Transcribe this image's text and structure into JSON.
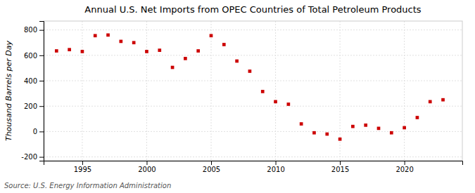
{
  "chart_data": {
    "type": "scatter",
    "title": "Annual U.S. Net Imports from OPEC Countries of Total Petroleum Products",
    "ylabel": "Thousand Barrels per Day",
    "source": "Source: U.S. Energy Information Administration",
    "x": [
      1993,
      1994,
      1995,
      1996,
      1997,
      1998,
      1999,
      2000,
      2001,
      2002,
      2003,
      2004,
      2005,
      2006,
      2007,
      2008,
      2009,
      2010,
      2011,
      2012,
      2013,
      2014,
      2015,
      2016,
      2017,
      2018,
      2019,
      2020,
      2021,
      2022,
      2023
    ],
    "values": [
      635,
      645,
      630,
      755,
      760,
      710,
      700,
      630,
      640,
      505,
      575,
      635,
      755,
      685,
      555,
      475,
      315,
      235,
      215,
      60,
      -10,
      -20,
      -60,
      40,
      50,
      25,
      -10,
      30,
      110,
      235,
      250
    ],
    "color": "#cc0000",
    "marker": "square",
    "xlim": [
      1992.0,
      2024.5
    ],
    "ylim": [
      -230,
      870
    ],
    "xticks": [
      1995,
      2000,
      2005,
      2010,
      2015,
      2020
    ],
    "yticks": [
      -200,
      0,
      200,
      400,
      600,
      800
    ],
    "grid": true
  }
}
